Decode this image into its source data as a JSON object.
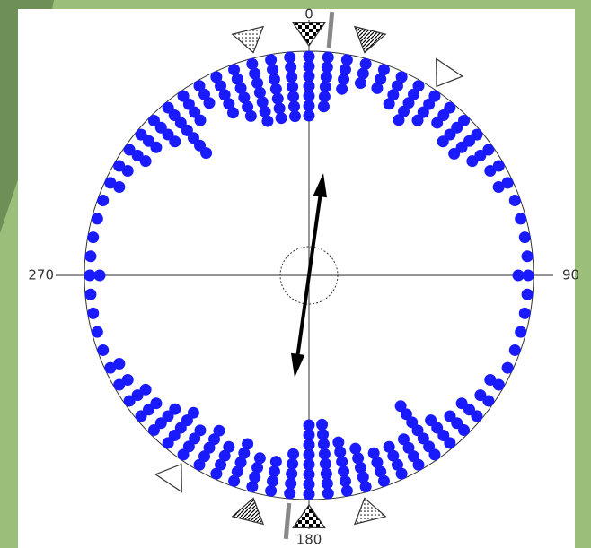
{
  "chart_data": {
    "type": "circular-dot",
    "angle_ticks": [
      0,
      90,
      180,
      270
    ],
    "angles": [
      0,
      5,
      10,
      15,
      20,
      25,
      30,
      35,
      40,
      45,
      50,
      55,
      60,
      65,
      70,
      75,
      80,
      85,
      90,
      95,
      100,
      105,
      110,
      115,
      120,
      125,
      130,
      135,
      140,
      145,
      150,
      155,
      160,
      165,
      170,
      175,
      180,
      185,
      190,
      195,
      200,
      205,
      210,
      215,
      220,
      225,
      230,
      235,
      240,
      245,
      250,
      255,
      260,
      265,
      270,
      275,
      280,
      285,
      290,
      295,
      300,
      305,
      310,
      315,
      320,
      325,
      330,
      335,
      340,
      345,
      350,
      355
    ],
    "counts": [
      7,
      6,
      4,
      3,
      3,
      4,
      5,
      4,
      3,
      4,
      4,
      3,
      2,
      2,
      1,
      1,
      1,
      1,
      2,
      1,
      1,
      1,
      1,
      1,
      2,
      2,
      3,
      3,
      4,
      7,
      4,
      4,
      4,
      5,
      6,
      8,
      8,
      5,
      4,
      4,
      5,
      4,
      5,
      4,
      5,
      4,
      3,
      3,
      2,
      2,
      1,
      1,
      1,
      1,
      2,
      1,
      1,
      1,
      1,
      2,
      2,
      3,
      3,
      4,
      7,
      4,
      3,
      5,
      6,
      7,
      7,
      7
    ],
    "color": "#1a1aff",
    "mean_direction": 8,
    "resultant_length": 0.46
  }
}
